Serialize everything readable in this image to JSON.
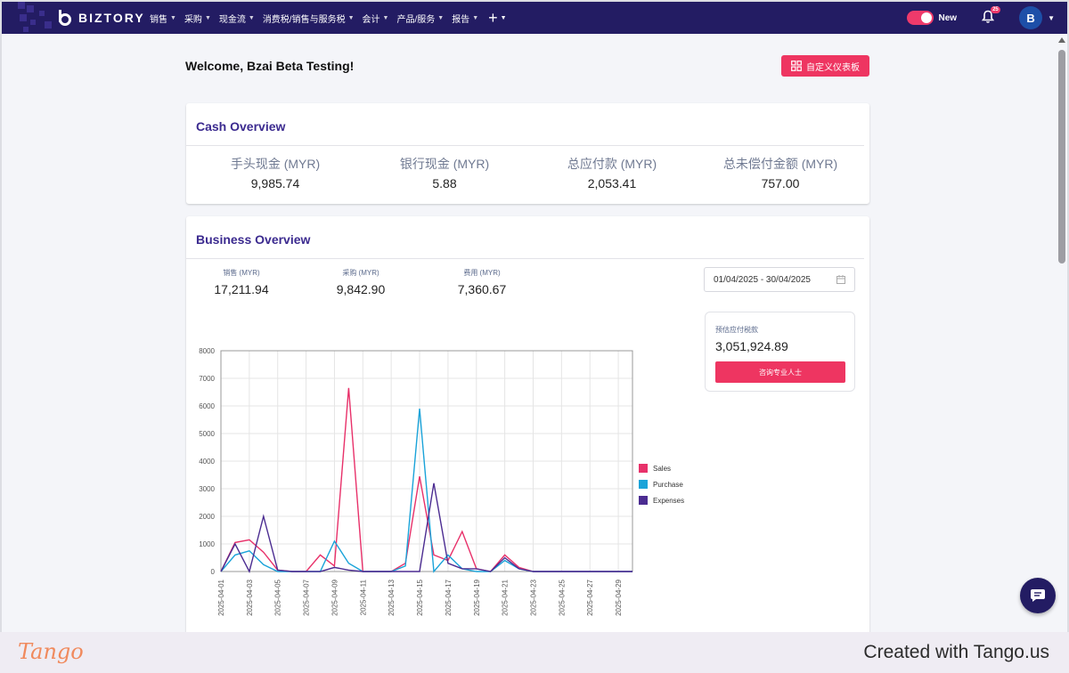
{
  "brand": {
    "name": "BIZTORY"
  },
  "nav": {
    "items": [
      {
        "label": "销售"
      },
      {
        "label": "采购"
      },
      {
        "label": "现金流"
      },
      {
        "label": "消费税/销售与服务税"
      },
      {
        "label": "会计"
      },
      {
        "label": "产品/服务"
      },
      {
        "label": "报告"
      }
    ],
    "plus_label": "+"
  },
  "header_tools": {
    "toggle_label": "New",
    "notification_count": "25",
    "avatar_initial": "B"
  },
  "page": {
    "welcome": "Welcome, Bzai Beta Testing!",
    "customize_label": "自定义仪表板"
  },
  "cash_overview": {
    "title": "Cash Overview",
    "items": [
      {
        "label": "手头现金 (MYR)",
        "value": "9,985.74"
      },
      {
        "label": "银行现金 (MYR)",
        "value": "5.88"
      },
      {
        "label": "总应付款 (MYR)",
        "value": "2,053.41"
      },
      {
        "label": "总未偿付金额 (MYR)",
        "value": "757.00"
      }
    ]
  },
  "business_overview": {
    "title": "Business Overview",
    "metrics": [
      {
        "label": "销售 (MYR)",
        "value": "17,211.94"
      },
      {
        "label": "采购 (MYR)",
        "value": "9,842.90"
      },
      {
        "label": "费用 (MYR)",
        "value": "7,360.67"
      }
    ],
    "date_range": "01/04/2025 - 30/04/2025",
    "tax": {
      "label": "预估应付税款",
      "value": "3,051,924.89",
      "button_label": "咨询专业人士"
    }
  },
  "chart_data": {
    "type": "line",
    "title": "",
    "xlabel": "",
    "ylabel": "",
    "ylim": [
      0,
      8000
    ],
    "yticks": [
      0,
      1000,
      2000,
      3000,
      4000,
      5000,
      6000,
      7000,
      8000
    ],
    "x": [
      "2025-04-01",
      "2025-04-02",
      "2025-04-03",
      "2025-04-04",
      "2025-04-05",
      "2025-04-06",
      "2025-04-07",
      "2025-04-08",
      "2025-04-09",
      "2025-04-10",
      "2025-04-11",
      "2025-04-12",
      "2025-04-13",
      "2025-04-14",
      "2025-04-15",
      "2025-04-16",
      "2025-04-17",
      "2025-04-18",
      "2025-04-19",
      "2025-04-20",
      "2025-04-21",
      "2025-04-22",
      "2025-04-23",
      "2025-04-24",
      "2025-04-25",
      "2025-04-26",
      "2025-04-27",
      "2025-04-28",
      "2025-04-29",
      "2025-04-30"
    ],
    "xtick_labels": [
      "2025-04-01",
      "2025-04-03",
      "2025-04-05",
      "2025-04-07",
      "2025-04-09",
      "2025-04-11",
      "2025-04-13",
      "2025-04-15",
      "2025-04-17",
      "2025-04-19",
      "2025-04-21",
      "2025-04-23",
      "2025-04-25",
      "2025-04-27",
      "2025-04-29"
    ],
    "legend_position": "right",
    "series": [
      {
        "name": "Sales",
        "color": "#e8316a",
        "values": [
          0,
          1050,
          1150,
          700,
          50,
          0,
          0,
          600,
          200,
          6650,
          0,
          0,
          0,
          300,
          3450,
          600,
          400,
          1450,
          100,
          0,
          600,
          150,
          0,
          0,
          0,
          0,
          0,
          0,
          0,
          0
        ]
      },
      {
        "name": "Purchase",
        "color": "#1aa3d9",
        "values": [
          0,
          600,
          750,
          250,
          0,
          0,
          0,
          0,
          1100,
          300,
          0,
          0,
          0,
          200,
          5900,
          0,
          600,
          100,
          0,
          0,
          400,
          100,
          0,
          0,
          0,
          0,
          0,
          0,
          0,
          0
        ]
      },
      {
        "name": "Expenses",
        "color": "#4b2c91",
        "values": [
          0,
          1000,
          0,
          2000,
          50,
          0,
          0,
          0,
          150,
          50,
          0,
          0,
          0,
          0,
          0,
          3200,
          300,
          100,
          100,
          0,
          500,
          100,
          0,
          0,
          0,
          0,
          0,
          0,
          0,
          0
        ]
      }
    ]
  },
  "footer": {
    "logo": "Tango",
    "credit": "Created with Tango.us"
  }
}
